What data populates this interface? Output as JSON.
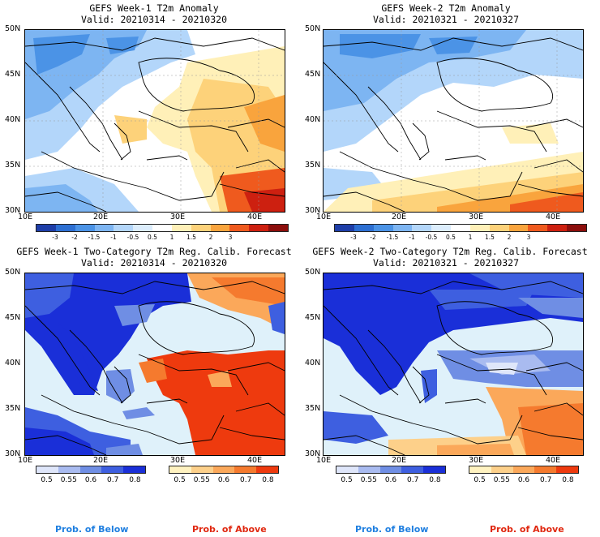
{
  "panels": [
    {
      "line1": "GEFS Week-1 T2m Anomaly",
      "line2": "Valid: 20210314 - 20210320"
    },
    {
      "line1": "GEFS Week-2 T2m Anomaly",
      "line2": "Valid: 20210321 - 20210327"
    },
    {
      "line1": "GEFS Week-1 Two-Category T2m Reg. Calib. Forecast",
      "line2": "Valid: 20210314 - 20210320"
    },
    {
      "line1": "GEFS Week-2 Two-Category T2m Reg. Calib. Forecast",
      "line2": "Valid: 20210321 - 20210327"
    }
  ],
  "lat_labels": [
    "50N",
    "45N",
    "40N",
    "35N",
    "30N"
  ],
  "lon_labels": [
    "10E",
    "20E",
    "30E",
    "40E"
  ],
  "anomaly_colorbar": {
    "labels": [
      "-3",
      "-2",
      "-1.5",
      "-1",
      "-0.5",
      "0.5",
      "1",
      "1.5",
      "2",
      "3"
    ],
    "colors": [
      "#1e3ea8",
      "#2d6fd2",
      "#4b93e6",
      "#7db5f2",
      "#b3d6fa",
      "#dcedfc",
      "#ffffff",
      "#fff0b8",
      "#fdd27a",
      "#f9a43d",
      "#ef5a1e",
      "#cd2010",
      "#8c0e0c"
    ]
  },
  "below_colorbar": {
    "labels": [
      "0.5",
      "0.55",
      "0.6",
      "0.7",
      "0.8"
    ],
    "colors": [
      "#dfe6fa",
      "#a9bbf0",
      "#6f8ee4",
      "#3e5fe0",
      "#1a2fd8"
    ]
  },
  "above_colorbar": {
    "labels": [
      "0.5",
      "0.55",
      "0.6",
      "0.7",
      "0.8"
    ],
    "colors": [
      "#fff2c0",
      "#fdd08a",
      "#fba85a",
      "#f57a2e",
      "#ee3a0e"
    ]
  },
  "legend": {
    "below_label": "Prob. of Below",
    "above_label": "Prob. of Above",
    "below_color": "#1f7fe0",
    "above_color": "#e02810"
  },
  "map_colors": {
    "sea_prob": "#dff1fa",
    "coast": "#000000"
  }
}
